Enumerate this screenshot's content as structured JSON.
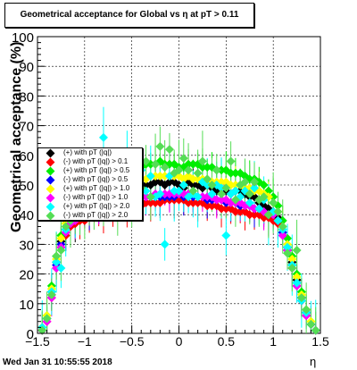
{
  "title": "Geometrical acceptance for Global vs   η at pT > 0.11",
  "footer": {
    "date": "Wed Jan 31 10:55:55 2018"
  },
  "chart_data": {
    "type": "scatter",
    "title": "Geometrical acceptance for Global vs   η at pT > 0.11",
    "xlabel": "η",
    "ylabel": "Geometrical acceptance (%)",
    "xlim": [
      -1.5,
      1.5
    ],
    "ylim": [
      0,
      100
    ],
    "xticks": [
      -1.5,
      -1,
      -0.5,
      0,
      0.5,
      1,
      1.5
    ],
    "xtick_labels": [
      "−1.5",
      "−1",
      "−0.5",
      "0",
      "0.5",
      "1",
      "1.5"
    ],
    "yticks": [
      0,
      10,
      20,
      30,
      40,
      50,
      60,
      70,
      80,
      90,
      100
    ],
    "ytick_labels": [
      "0",
      "10",
      "20",
      "30",
      "40",
      "50",
      "60",
      "70",
      "80",
      "90",
      "100"
    ],
    "grid": true,
    "legend_position": "left",
    "x": [
      -1.45,
      -1.4,
      -1.35,
      -1.3,
      -1.25,
      -1.2,
      -1.15,
      -1.1,
      -1.05,
      -1.0,
      -0.95,
      -0.9,
      -0.85,
      -0.8,
      -0.75,
      -0.7,
      -0.65,
      -0.6,
      -0.55,
      -0.5,
      -0.45,
      -0.4,
      -0.35,
      -0.3,
      -0.25,
      -0.2,
      -0.15,
      -0.1,
      -0.05,
      0.0,
      0.05,
      0.1,
      0.15,
      0.2,
      0.25,
      0.3,
      0.35,
      0.4,
      0.45,
      0.5,
      0.55,
      0.6,
      0.65,
      0.7,
      0.75,
      0.8,
      0.85,
      0.9,
      0.95,
      1.0,
      1.05,
      1.1,
      1.15,
      1.2,
      1.25,
      1.3,
      1.35,
      1.4,
      1.45
    ],
    "series": [
      {
        "name": "(+) with pT (|q|)",
        "color": "#000000",
        "values": [
          1,
          5,
          14,
          24,
          31,
          35,
          37,
          37,
          42,
          43,
          44,
          45,
          45,
          46,
          46,
          47,
          47,
          47,
          48,
          48,
          49,
          50,
          50,
          50,
          51,
          51,
          50,
          51,
          51,
          50,
          49,
          51,
          50,
          50,
          49,
          50,
          49,
          48,
          48,
          48,
          47,
          48,
          48,
          47,
          46,
          46,
          44,
          43,
          42,
          41,
          39,
          34,
          29,
          24,
          18,
          12,
          7,
          3,
          1
        ]
      },
      {
        "name": "(-) with pT (|q|) > 0.1",
        "color": "#ff0000",
        "values": [
          1,
          4,
          12,
          22,
          29,
          33,
          36,
          37,
          38,
          38,
          39,
          39,
          40,
          40,
          41,
          41,
          42,
          42,
          42,
          43,
          43,
          43,
          44,
          44,
          44,
          44,
          45,
          45,
          45,
          45,
          45,
          44,
          44,
          44,
          44,
          43,
          43,
          43,
          42,
          42,
          42,
          41,
          41,
          41,
          40,
          40,
          40,
          39,
          39,
          38,
          37,
          33,
          28,
          22,
          16,
          11,
          6,
          3,
          1
        ]
      },
      {
        "name": "(+) with pT (|q|) > 0.5",
        "color": "#00ee00",
        "values": [
          2,
          6,
          16,
          26,
          33,
          38,
          40,
          42,
          46,
          48,
          50,
          51,
          52,
          53,
          53,
          54,
          54,
          55,
          55,
          56,
          56,
          56,
          57,
          57,
          57,
          58,
          57,
          57,
          57,
          56,
          56,
          57,
          57,
          57,
          56,
          56,
          56,
          55,
          55,
          55,
          54,
          54,
          54,
          53,
          52,
          52,
          51,
          50,
          48,
          46,
          43,
          38,
          32,
          26,
          20,
          14,
          8,
          4,
          1
        ]
      },
      {
        "name": "(-) with pT (|q|) > 0.5",
        "color": "#0000ff",
        "values": [
          1,
          5,
          13,
          23,
          30,
          34,
          37,
          38,
          40,
          40,
          41,
          42,
          42,
          43,
          43,
          44,
          44,
          44,
          45,
          45,
          45,
          46,
          46,
          46,
          46,
          46,
          46,
          46,
          46,
          47,
          46,
          46,
          46,
          46,
          46,
          45,
          45,
          45,
          45,
          44,
          44,
          44,
          43,
          43,
          43,
          42,
          42,
          41,
          40,
          40,
          38,
          34,
          28,
          23,
          17,
          12,
          7,
          3,
          1
        ]
      },
      {
        "name": "(+) with pT (|q|) > 1.0",
        "color": "#ffff00",
        "values": [
          2,
          6,
          15,
          25,
          32,
          37,
          39,
          40,
          44,
          46,
          47,
          48,
          49,
          49,
          50,
          50,
          51,
          51,
          51,
          52,
          52,
          52,
          52,
          53,
          53,
          53,
          53,
          53,
          53,
          53,
          52,
          53,
          52,
          52,
          52,
          52,
          51,
          51,
          51,
          51,
          50,
          50,
          50,
          49,
          49,
          48,
          48,
          47,
          46,
          44,
          41,
          36,
          30,
          25,
          19,
          13,
          8,
          4,
          1
        ]
      },
      {
        "name": "(-) with pT (|q|) > 1.0",
        "color": "#ff00ff",
        "values": [
          1,
          4,
          12,
          22,
          29,
          34,
          37,
          38,
          40,
          41,
          42,
          42,
          43,
          43,
          44,
          44,
          44,
          45,
          45,
          45,
          46,
          46,
          46,
          46,
          47,
          47,
          47,
          47,
          47,
          47,
          47,
          47,
          47,
          46,
          46,
          46,
          46,
          45,
          45,
          45,
          44,
          44,
          44,
          43,
          43,
          42,
          42,
          41,
          40,
          40,
          38,
          33,
          28,
          22,
          16,
          11,
          6,
          3,
          1
        ]
      },
      {
        "name": "(+) with pT (|q|) > 2.0",
        "color": "#00ffff",
        "values": [
          2,
          5,
          14,
          24,
          22,
          35,
          38,
          40,
          44,
          46,
          47,
          50,
          48,
          66,
          49,
          52,
          50,
          51,
          58,
          49,
          52,
          55,
          48,
          53,
          46,
          47,
          30,
          53,
          48,
          48,
          50,
          46,
          47,
          46,
          51,
          50,
          47,
          50,
          49,
          33,
          47,
          48,
          46,
          48,
          44,
          49,
          42,
          45,
          40,
          41,
          38,
          35,
          29,
          23,
          17,
          11,
          7,
          3,
          1
        ]
      },
      {
        "name": "(-) with pT (|q|) > 2.0",
        "color": "#55dd55",
        "values": [
          1,
          5,
          13,
          26,
          28,
          36,
          38,
          39,
          41,
          42,
          43,
          44,
          46,
          44,
          50,
          47,
          42,
          45,
          48,
          46,
          55,
          49,
          58,
          46,
          57,
          63,
          56,
          62,
          54,
          55,
          59,
          55,
          48,
          54,
          58,
          52,
          50,
          55,
          47,
          49,
          58,
          45,
          50,
          51,
          47,
          51,
          45,
          46,
          40,
          44,
          41,
          36,
          27,
          22,
          28,
          12,
          8,
          3,
          1
        ]
      }
    ],
    "legend_labels": [
      "(+) with pT (|q|)",
      "(-) with pT (|q|) > 0.1",
      "(+) with pT (|q|) > 0.5",
      "(-) with pT (|q|) > 0.5",
      "(+) with pT (|q|) > 1.0",
      "(-) with pT (|q|) > 1.0",
      "(+) with pT (|q|) > 2.0",
      "(-) with pT (|q|) > 2.0"
    ]
  }
}
